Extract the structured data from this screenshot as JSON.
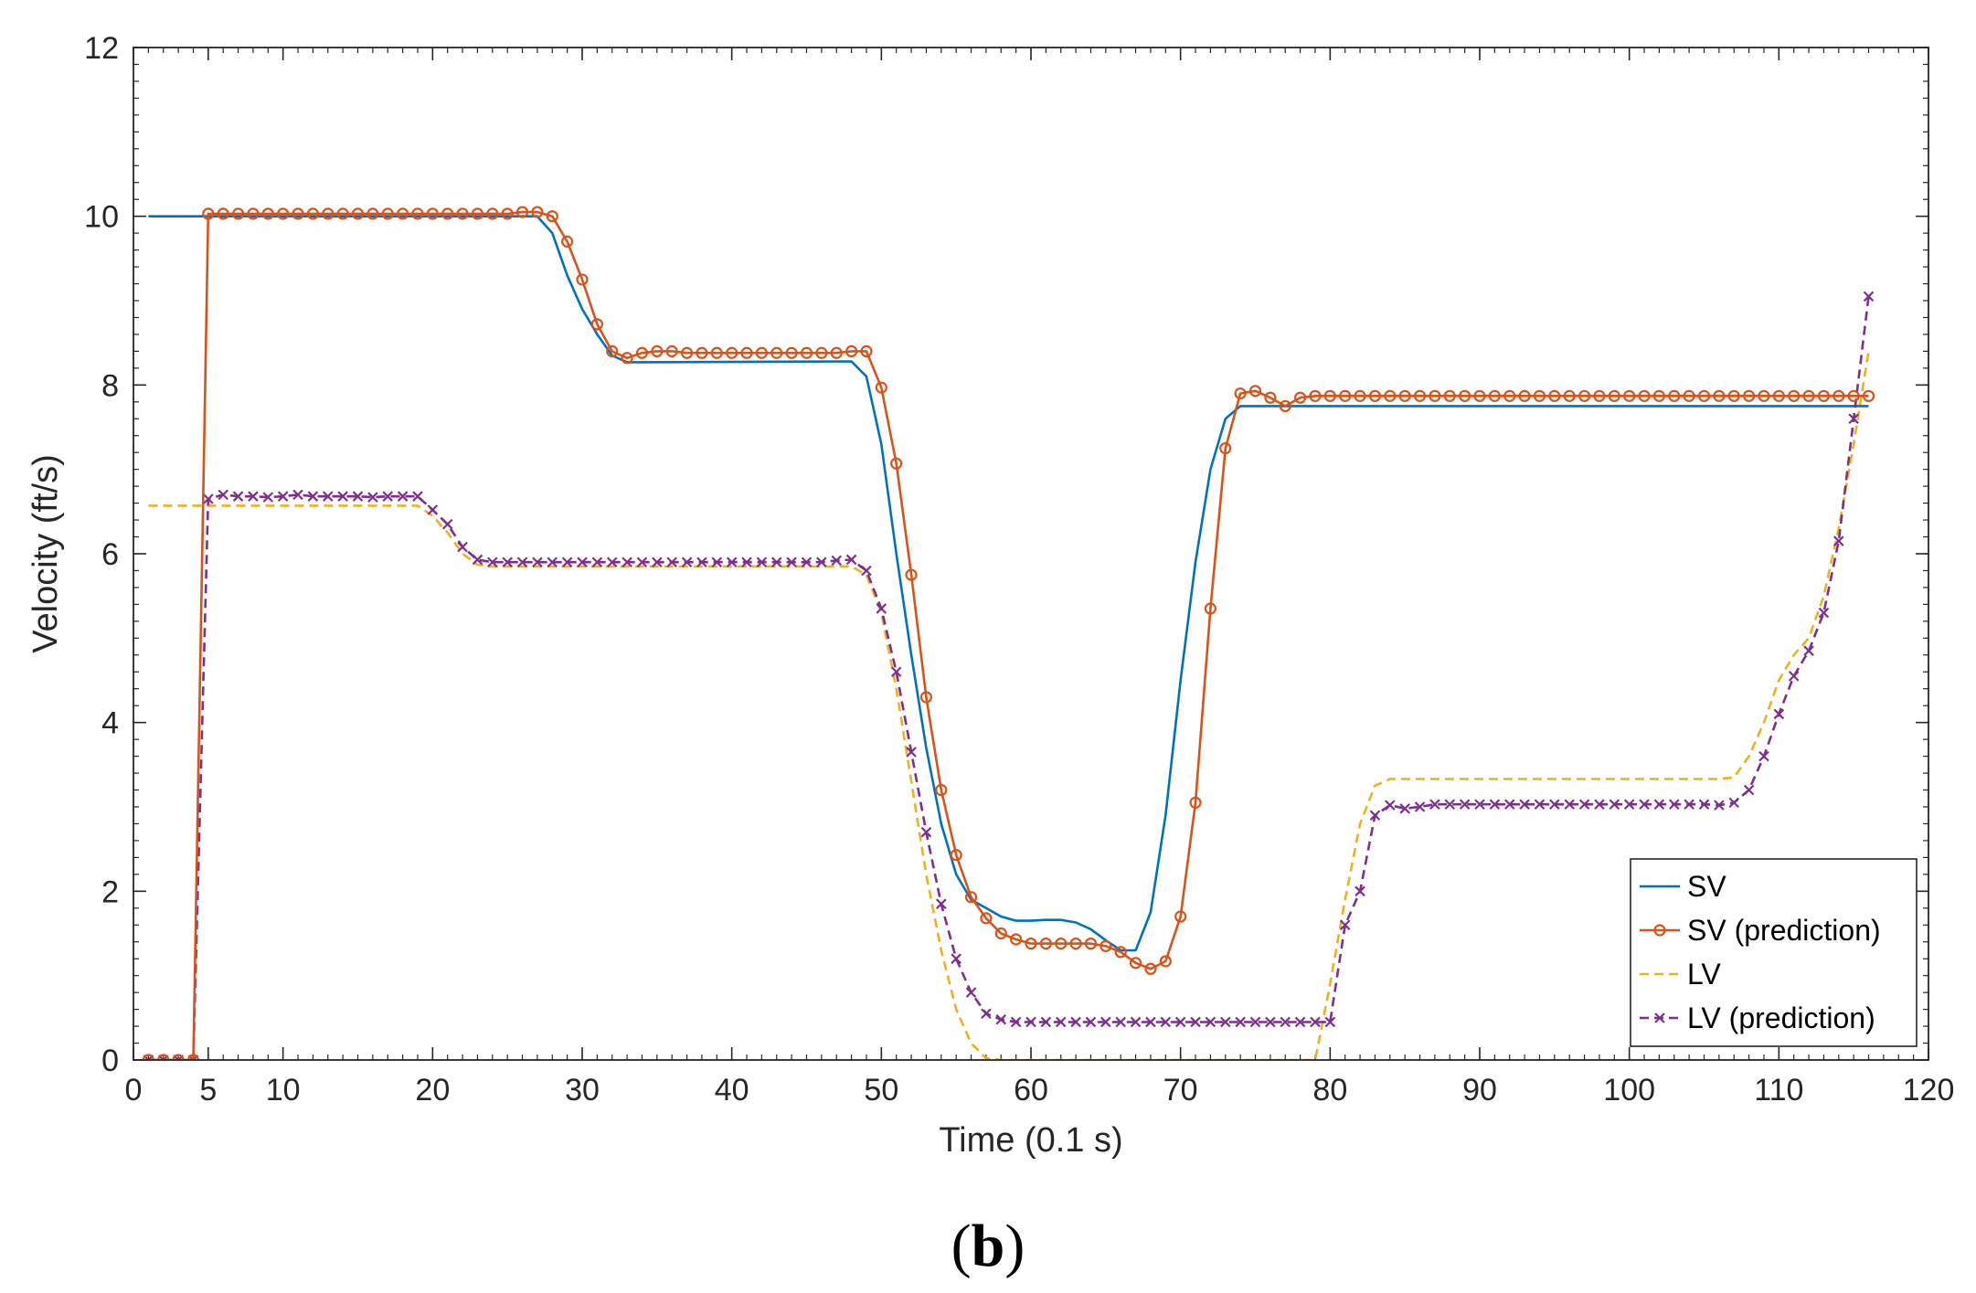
{
  "chart_data": {
    "type": "line",
    "title": "",
    "xlabel": "Time (0.1 s)",
    "ylabel": "Velocity (ft/s)",
    "xlim": [
      0,
      120
    ],
    "ylim": [
      0,
      12
    ],
    "x_ticks": [
      0,
      5,
      10,
      20,
      30,
      40,
      50,
      60,
      70,
      80,
      90,
      100,
      110,
      120
    ],
    "y_ticks": [
      0,
      2,
      4,
      6,
      8,
      10,
      12
    ],
    "grid": false,
    "legend_position": "bottom-right",
    "panel_label": {
      "open": "(",
      "letter": "b",
      "close": ")"
    },
    "series": [
      {
        "name": "SV",
        "color": "#0072BD",
        "line_style": "solid",
        "marker": "none",
        "x": [
          1,
          26,
          27,
          28,
          29,
          30,
          31,
          32,
          33,
          34,
          48,
          49,
          50,
          51,
          52,
          53,
          54,
          55,
          56,
          57,
          58,
          59,
          60,
          61,
          62,
          63,
          64,
          65,
          66,
          67,
          68,
          69,
          70,
          71,
          72,
          73,
          74,
          75,
          76,
          116
        ],
        "y": [
          10.0,
          10.0,
          10.0,
          9.8,
          9.3,
          8.9,
          8.6,
          8.35,
          8.27,
          8.27,
          8.28,
          8.1,
          7.3,
          6.0,
          4.8,
          3.7,
          2.8,
          2.2,
          1.9,
          1.8,
          1.7,
          1.65,
          1.65,
          1.66,
          1.66,
          1.63,
          1.55,
          1.42,
          1.3,
          1.3,
          1.75,
          2.9,
          4.5,
          5.9,
          7.0,
          7.6,
          7.75,
          7.75,
          7.75,
          7.75
        ]
      },
      {
        "name": "SV (prediction)",
        "color": "#D95319",
        "line_style": "solid",
        "marker": "circle",
        "x": [
          1,
          2,
          3,
          4,
          5,
          6,
          7,
          8,
          9,
          10,
          11,
          12,
          13,
          14,
          15,
          16,
          17,
          18,
          19,
          20,
          21,
          22,
          23,
          24,
          25,
          26,
          27,
          28,
          29,
          30,
          31,
          32,
          33,
          34,
          35,
          36,
          37,
          38,
          39,
          40,
          41,
          42,
          43,
          44,
          45,
          46,
          47,
          48,
          49,
          50,
          51,
          52,
          53,
          54,
          55,
          56,
          57,
          58,
          59,
          60,
          61,
          62,
          63,
          64,
          65,
          66,
          67,
          68,
          69,
          70,
          71,
          72,
          73,
          74,
          75,
          76,
          77,
          78,
          79,
          80,
          81,
          82,
          83,
          84,
          85,
          86,
          87,
          88,
          89,
          90,
          91,
          92,
          93,
          94,
          95,
          96,
          97,
          98,
          99,
          100,
          101,
          102,
          103,
          104,
          105,
          106,
          107,
          108,
          109,
          110,
          111,
          112,
          113,
          114,
          115,
          116
        ],
        "y": [
          0,
          0,
          0,
          0,
          10.03,
          10.03,
          10.03,
          10.03,
          10.03,
          10.03,
          10.03,
          10.03,
          10.03,
          10.03,
          10.03,
          10.03,
          10.03,
          10.03,
          10.03,
          10.03,
          10.03,
          10.03,
          10.03,
          10.03,
          10.03,
          10.05,
          10.05,
          10.0,
          9.7,
          9.25,
          8.72,
          8.4,
          8.32,
          8.38,
          8.4,
          8.4,
          8.38,
          8.38,
          8.38,
          8.38,
          8.38,
          8.38,
          8.38,
          8.38,
          8.38,
          8.38,
          8.38,
          8.4,
          8.4,
          7.97,
          7.07,
          5.75,
          4.3,
          3.2,
          2.43,
          1.93,
          1.68,
          1.5,
          1.43,
          1.38,
          1.38,
          1.38,
          1.38,
          1.38,
          1.35,
          1.28,
          1.15,
          1.08,
          1.17,
          1.7,
          3.05,
          5.35,
          7.25,
          7.9,
          7.93,
          7.85,
          7.75,
          7.85,
          7.87,
          7.87,
          7.87,
          7.87,
          7.87,
          7.87,
          7.87,
          7.87,
          7.87,
          7.87,
          7.87,
          7.87,
          7.87,
          7.87,
          7.87,
          7.87,
          7.87,
          7.87,
          7.87,
          7.87,
          7.87,
          7.87,
          7.87,
          7.87,
          7.87,
          7.87,
          7.87,
          7.87,
          7.87,
          7.87,
          7.87,
          7.87,
          7.87,
          7.87,
          7.87,
          7.87,
          7.87,
          7.87
        ]
      },
      {
        "name": "LV",
        "color": "#EDB120",
        "line_style": "dashed",
        "marker": "none",
        "x": [
          1,
          19,
          20,
          21,
          22,
          23,
          24,
          48,
          49,
          50,
          51,
          52,
          53,
          54,
          55,
          56,
          57,
          58,
          79,
          80,
          81,
          82,
          83,
          84,
          106,
          107,
          108,
          109,
          110,
          111,
          112,
          113,
          114,
          115,
          116
        ],
        "y": [
          6.57,
          6.57,
          6.45,
          6.25,
          6.0,
          5.87,
          5.85,
          5.85,
          5.75,
          5.3,
          4.4,
          3.3,
          2.2,
          1.3,
          0.6,
          0.2,
          0.02,
          0,
          0,
          0.9,
          1.9,
          2.8,
          3.25,
          3.33,
          3.33,
          3.35,
          3.6,
          4.0,
          4.5,
          4.8,
          5.0,
          5.5,
          6.3,
          7.3,
          8.4
        ]
      },
      {
        "name": "LV (prediction)",
        "color": "#7E2F8E",
        "line_style": "dashed",
        "marker": "x",
        "x": [
          1,
          2,
          3,
          4,
          5,
          6,
          7,
          8,
          9,
          10,
          11,
          12,
          13,
          14,
          15,
          16,
          17,
          18,
          19,
          20,
          21,
          22,
          23,
          24,
          25,
          26,
          27,
          28,
          29,
          30,
          31,
          32,
          33,
          34,
          35,
          36,
          37,
          38,
          39,
          40,
          41,
          42,
          43,
          44,
          45,
          46,
          47,
          48,
          49,
          50,
          51,
          52,
          53,
          54,
          55,
          56,
          57,
          58,
          59,
          60,
          61,
          62,
          63,
          64,
          65,
          66,
          67,
          68,
          69,
          70,
          71,
          72,
          73,
          74,
          75,
          76,
          77,
          78,
          79,
          80,
          81,
          82,
          83,
          84,
          85,
          86,
          87,
          88,
          89,
          90,
          91,
          92,
          93,
          94,
          95,
          96,
          97,
          98,
          99,
          100,
          101,
          102,
          103,
          104,
          105,
          106,
          107,
          108,
          109,
          110,
          111,
          112,
          113,
          114,
          115,
          116
        ],
        "y": [
          0,
          0,
          0,
          0,
          6.65,
          6.7,
          6.68,
          6.68,
          6.67,
          6.68,
          6.7,
          6.68,
          6.68,
          6.68,
          6.68,
          6.67,
          6.68,
          6.68,
          6.68,
          6.52,
          6.35,
          6.08,
          5.93,
          5.9,
          5.9,
          5.9,
          5.9,
          5.9,
          5.9,
          5.9,
          5.9,
          5.9,
          5.9,
          5.9,
          5.9,
          5.9,
          5.9,
          5.9,
          5.9,
          5.9,
          5.9,
          5.9,
          5.9,
          5.9,
          5.9,
          5.9,
          5.92,
          5.93,
          5.8,
          5.35,
          4.6,
          3.65,
          2.7,
          1.85,
          1.2,
          0.8,
          0.55,
          0.48,
          0.45,
          0.45,
          0.45,
          0.45,
          0.45,
          0.45,
          0.45,
          0.45,
          0.45,
          0.45,
          0.45,
          0.45,
          0.45,
          0.45,
          0.45,
          0.45,
          0.45,
          0.45,
          0.45,
          0.45,
          0.45,
          0.45,
          1.6,
          2.0,
          2.9,
          3.02,
          2.98,
          3.0,
          3.03,
          3.03,
          3.03,
          3.03,
          3.03,
          3.03,
          3.03,
          3.03,
          3.03,
          3.03,
          3.03,
          3.03,
          3.03,
          3.03,
          3.03,
          3.03,
          3.03,
          3.03,
          3.03,
          3.02,
          3.05,
          3.2,
          3.6,
          4.1,
          4.55,
          4.85,
          5.3,
          6.15,
          7.6,
          9.05
        ]
      }
    ]
  }
}
